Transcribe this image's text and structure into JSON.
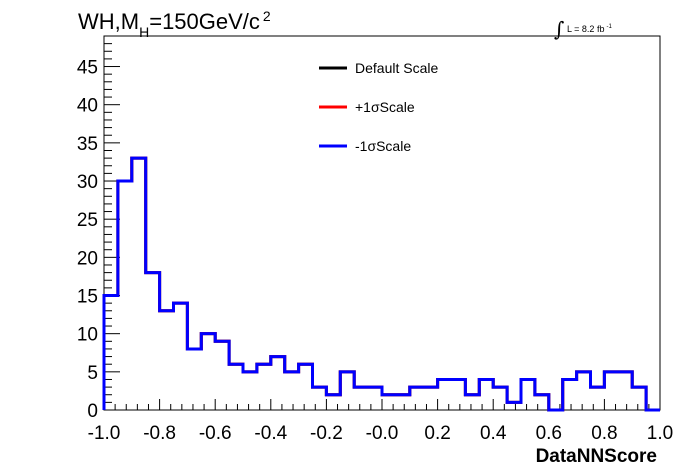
{
  "chart_data": {
    "type": "line",
    "title": {
      "main_before": "WH,M",
      "main_sub": "H",
      "main_after": "=150GeV/c",
      "main_sup": "2"
    },
    "lumi": {
      "integral": "∫",
      "text": "L = 8.2 fb",
      "sup": "-1"
    },
    "xlabel": "DataNNScore",
    "ylabel": "",
    "xlim": [
      -1.0,
      1.0
    ],
    "ylim": [
      0,
      49
    ],
    "x_ticks": [
      -1.0,
      -0.8,
      -0.6,
      -0.4,
      -0.2,
      0.0,
      0.2,
      0.4,
      0.6,
      0.8,
      1.0
    ],
    "x_tick_labels": [
      "-1.0",
      "-0.8",
      "-0.6",
      "-0.4",
      "-0.2",
      "-0.0",
      "0.2",
      "0.4",
      "0.6",
      "0.8",
      "1.0"
    ],
    "y_ticks": [
      0,
      5,
      10,
      15,
      20,
      25,
      30,
      35,
      40,
      45
    ],
    "y_tick_labels": [
      "0",
      "5",
      "10",
      "15",
      "20",
      "25",
      "30",
      "35",
      "40",
      "45"
    ],
    "bin_edges": [
      -1.0,
      -0.95,
      -0.9,
      -0.85,
      -0.8,
      -0.75,
      -0.7,
      -0.65,
      -0.6,
      -0.55,
      -0.5,
      -0.45,
      -0.4,
      -0.35,
      -0.3,
      -0.25,
      -0.2,
      -0.15,
      -0.1,
      -0.05,
      0.0,
      0.05,
      0.1,
      0.15,
      0.2,
      0.25,
      0.3,
      0.35,
      0.4,
      0.45,
      0.5,
      0.55,
      0.6,
      0.65,
      0.7,
      0.75,
      0.8,
      0.85,
      0.9,
      0.95,
      1.0
    ],
    "series": [
      {
        "name": "Default Scale",
        "color": "#000000",
        "values": [
          15,
          30,
          33,
          18,
          13,
          14,
          8,
          10,
          9,
          6,
          5,
          6,
          7,
          5,
          6,
          3,
          2,
          5,
          3,
          3,
          2,
          2,
          3,
          3,
          4,
          4,
          2,
          4,
          3,
          1,
          4,
          2,
          0,
          4,
          5,
          3,
          5,
          5,
          3,
          0
        ]
      },
      {
        "name": "+1σScale",
        "color": "#ff0000",
        "values": [
          15,
          30,
          33,
          18,
          13,
          14,
          8,
          10,
          9,
          6,
          5,
          6,
          7,
          5,
          6,
          3,
          2,
          5,
          3,
          3,
          2,
          2,
          3,
          3,
          4,
          4,
          2,
          4,
          3,
          1,
          4,
          2,
          0,
          4,
          5,
          3,
          5,
          5,
          3,
          0
        ]
      },
      {
        "name": "-1σScale",
        "color": "#0000ff",
        "values": [
          15,
          30,
          33,
          18,
          13,
          14,
          8,
          10,
          9,
          6,
          5,
          6,
          7,
          5,
          6,
          3,
          2,
          5,
          3,
          3,
          2,
          2,
          3,
          3,
          4,
          4,
          2,
          4,
          3,
          1,
          4,
          2,
          0,
          4,
          5,
          3,
          5,
          5,
          3,
          0
        ]
      }
    ],
    "legend_position": "top-center",
    "grid": false
  }
}
